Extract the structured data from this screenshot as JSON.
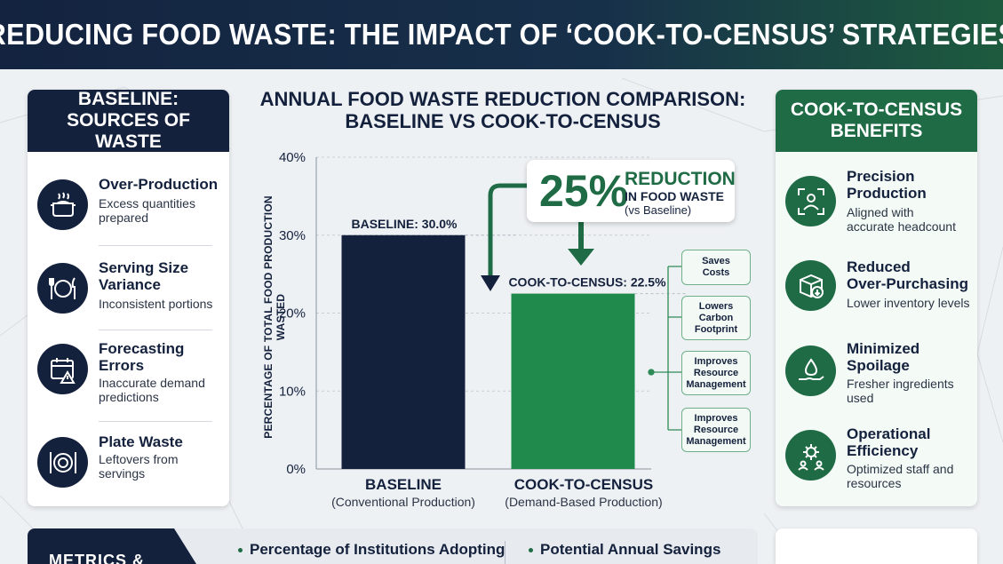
{
  "header": {
    "title": "REDUCING FOOD WASTE: THE IMPACT OF ‘COOK-TO-CENSUS’ STRATEGIES"
  },
  "left_panel": {
    "title": "BASELINE:\nSOURCES OF WASTE",
    "items": [
      {
        "title": "Over-Production",
        "desc": "Excess quantities\nprepared",
        "icon": "pot-icon"
      },
      {
        "title": "Serving Size\nVariance",
        "desc": "Inconsistent portions",
        "icon": "plate-utensils-icon"
      },
      {
        "title": "Forecasting\nErrors",
        "desc": "Inaccurate demand\npredictions",
        "icon": "calendar-warning-icon"
      },
      {
        "title": "Plate Waste",
        "desc": "Leftovers from\nservings",
        "icon": "dinner-plate-icon"
      }
    ]
  },
  "right_panel": {
    "title": "COOK-TO-CENSUS\nBENEFITS",
    "items": [
      {
        "title": "Precision\nProduction",
        "desc": "Aligned with\naccurate headcount",
        "icon": "person-focus-icon"
      },
      {
        "title": "Reduced\nOver-Purchasing",
        "desc": "Lower inventory levels",
        "icon": "box-down-icon"
      },
      {
        "title": "Minimized\nSpoilage",
        "desc": "Fresher ingredients\nused",
        "icon": "hand-drop-icon"
      },
      {
        "title": "Operational\nEfficiency",
        "desc": "Optimized staff and\nresources",
        "icon": "gear-people-icon"
      }
    ]
  },
  "chart_data": {
    "type": "bar",
    "title": "ANNUAL FOOD WASTE REDUCTION COMPARISON:\nBASELINE VS COOK-TO-CENSUS",
    "ylabel": "PERCENTAGE OF TOTAL FOOD PRODUCTION WASTED",
    "ylim": [
      0,
      40
    ],
    "yticks": [
      0,
      10,
      20,
      30,
      40
    ],
    "ytick_labels": [
      "0%",
      "10%",
      "20%",
      "30%",
      "40%"
    ],
    "categories": [
      "BASELINE",
      "COOK-TO-CENSUS"
    ],
    "category_sublabels": [
      "(Conventional Production)",
      "(Demand-Based Production)"
    ],
    "values": [
      30.0,
      22.5
    ],
    "data_labels": [
      "BASELINE: 30.0%",
      "COOK-TO-CENSUS: 22.5%"
    ],
    "colors": [
      "#14213d",
      "#1f8a4c"
    ],
    "grid": true
  },
  "callout": {
    "percent": "25%",
    "line1": "REDUCTION",
    "line2": "IN FOOD WASTE",
    "line3": "(vs Baseline)"
  },
  "side_boxes": [
    "Saves\nCosts",
    "Lowers\nCarbon\nFootprint",
    "Improves\nResource\nManagement",
    "Improves\nResource\nManagement"
  ],
  "bottom": {
    "label": "METRICS &",
    "metric1": "Percentage of Institutions Adopting",
    "metric2": "Potential Annual Savings"
  }
}
